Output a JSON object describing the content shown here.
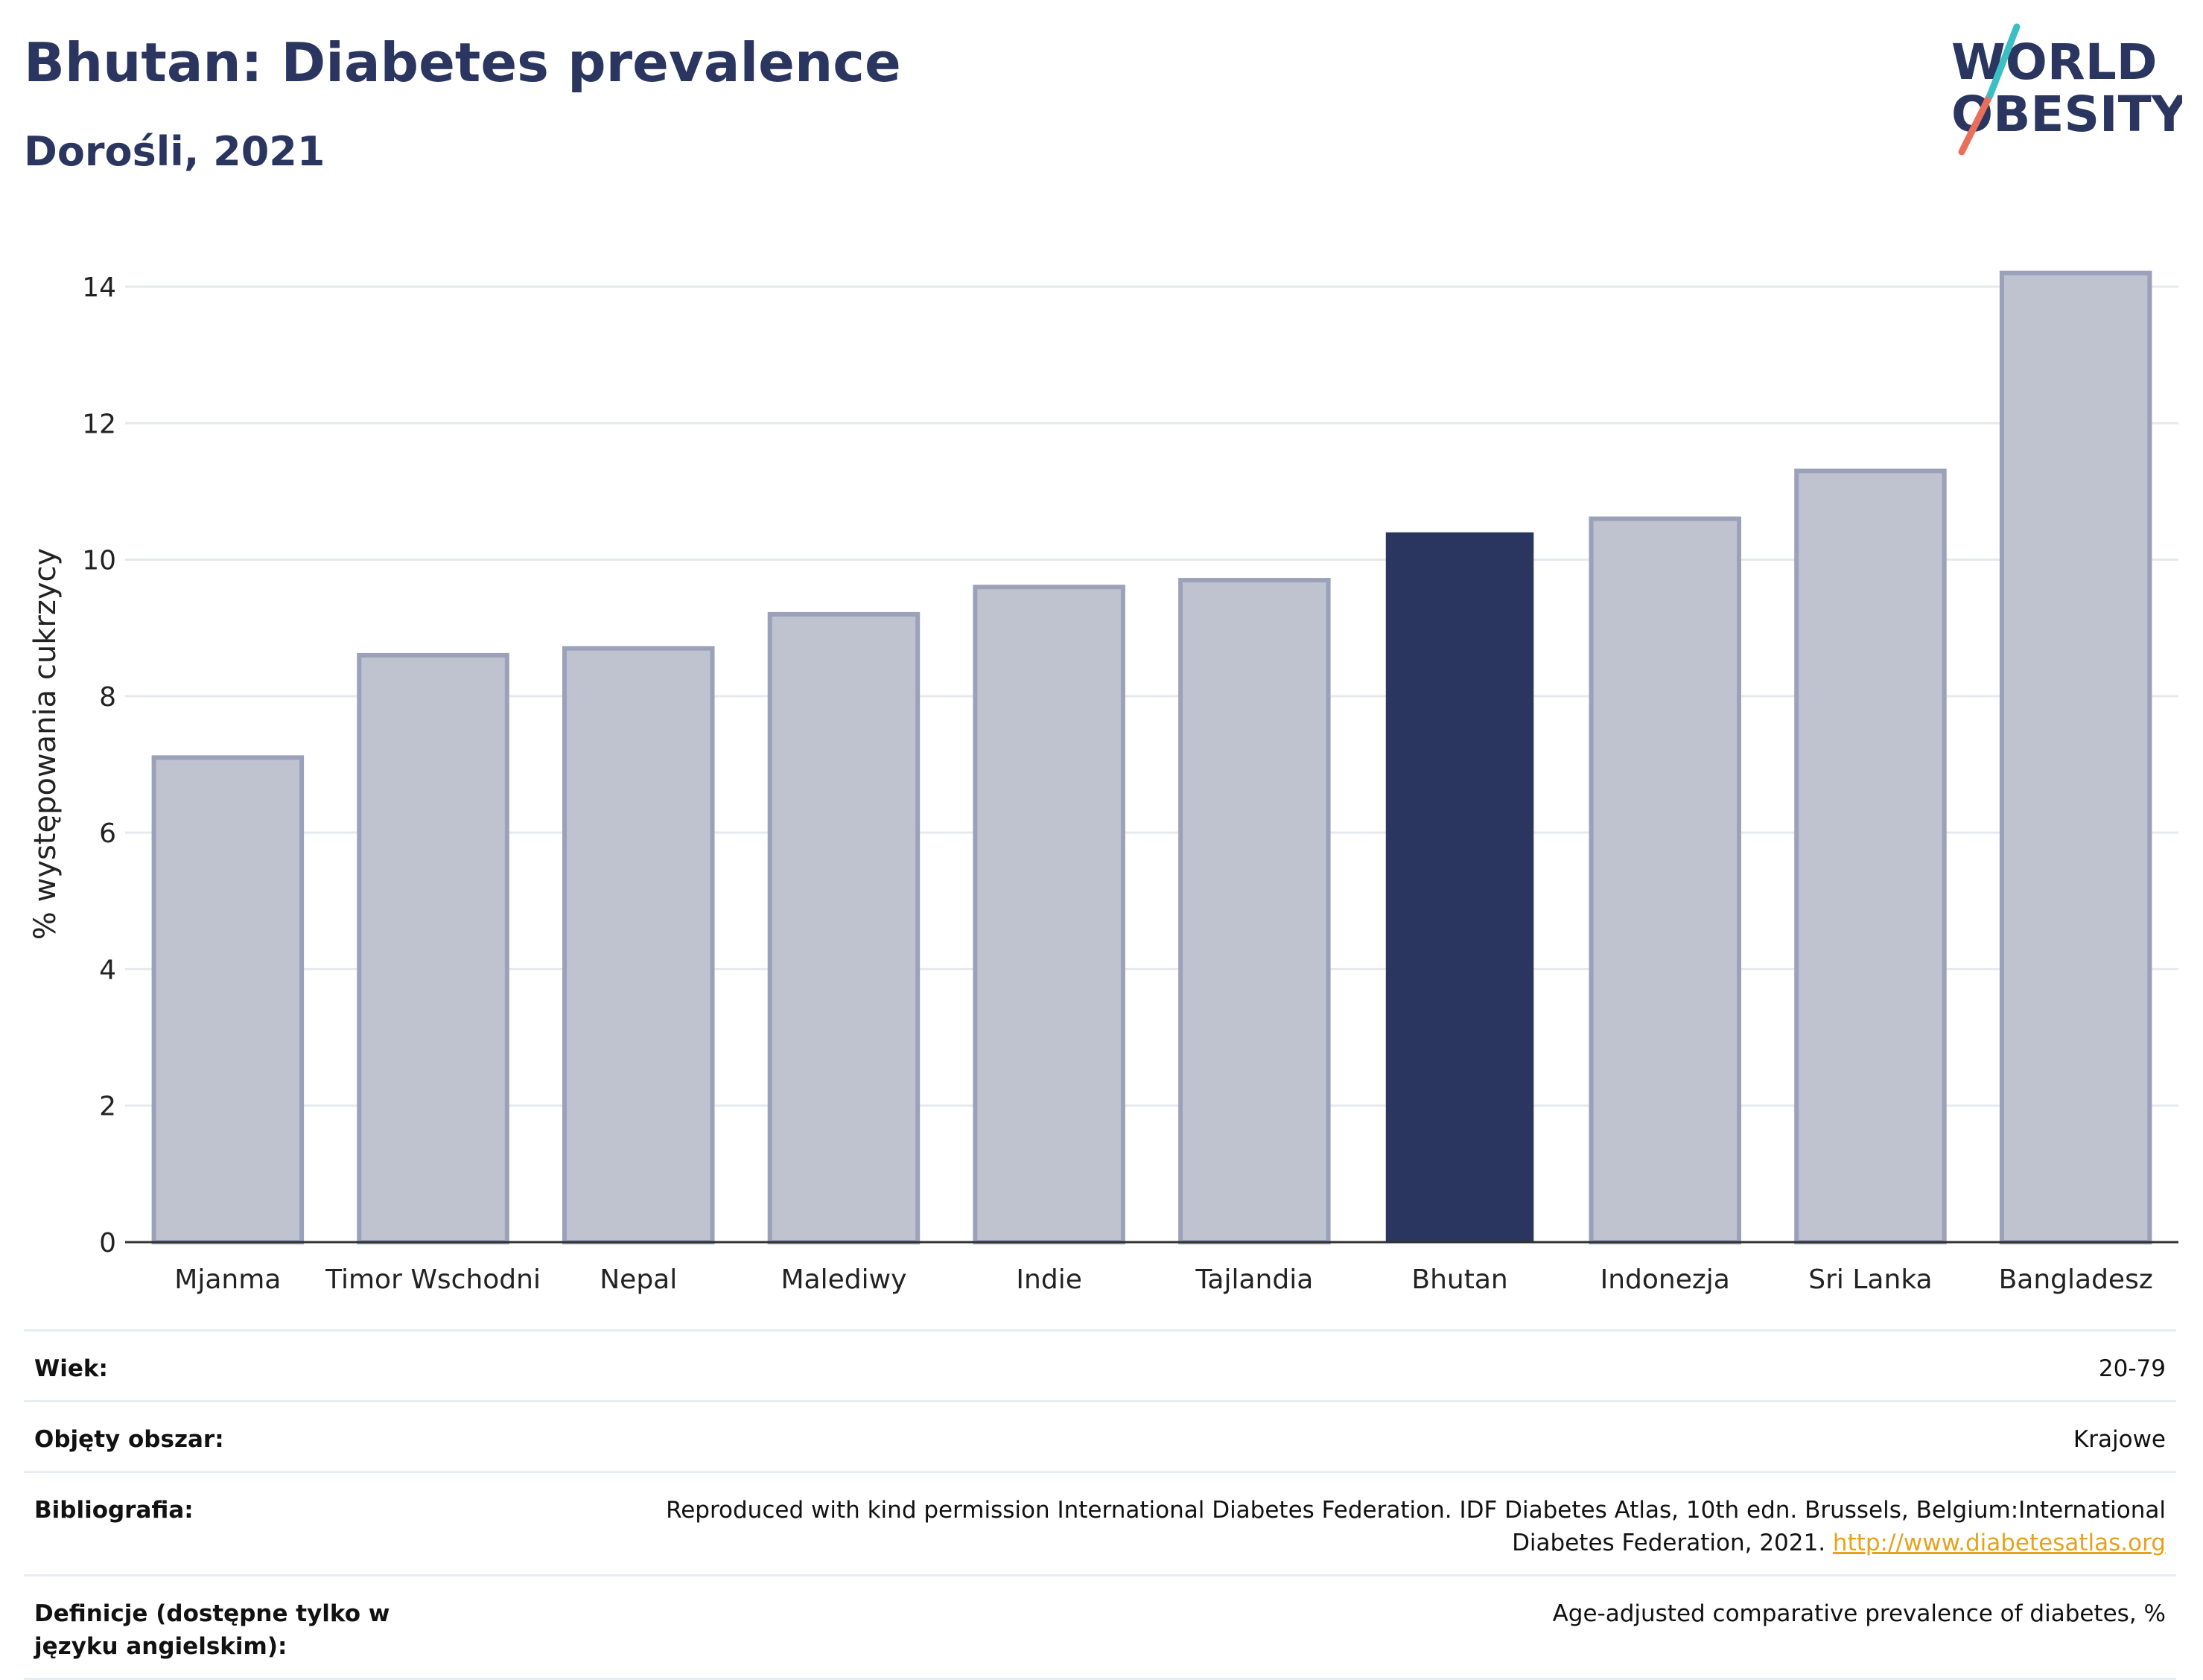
{
  "header": {
    "title": "Bhutan: Diabetes prevalence",
    "subtitle": "Dorośli, 2021"
  },
  "logo": {
    "line1": "WORLD",
    "line2": "OBESITY",
    "slash_colors": [
      "#e8705a",
      "#3bbfc4"
    ]
  },
  "chart_data": {
    "type": "bar",
    "categories": [
      "Mjanma",
      "Timor Wschodni",
      "Nepal",
      "Malediwy",
      "Indie",
      "Tajlandia",
      "Bhutan",
      "Indonezja",
      "Sri Lanka",
      "Bangladesz"
    ],
    "values": [
      7.1,
      8.6,
      8.7,
      9.2,
      9.6,
      9.7,
      10.4,
      10.6,
      11.3,
      14.2
    ],
    "highlight": "Bhutan",
    "xlabel": "",
    "ylabel": "% występowania cukrzycy",
    "ylim": [
      0,
      14.6
    ],
    "yticks": [
      0,
      2,
      4,
      6,
      8,
      10,
      12,
      14
    ],
    "grid": true,
    "colors": {
      "bar": "#bfc3d0",
      "bar_border": "#9aa1b8",
      "highlight": "#2a3560",
      "grid": "#e6e9ee",
      "axis": "#333333"
    }
  },
  "meta": [
    {
      "label": "Wiek:",
      "value": "20-79"
    },
    {
      "label": "Objęty obszar:",
      "value": "Krajowe"
    },
    {
      "label": "Bibliografia:",
      "value_line1": "Reproduced with kind permission International Diabetes Federation.  IDF Diabetes Atlas, 10th edn. Brussels, Belgium:International",
      "value_line2": "Diabetes Federation, 2021.",
      "link": "http://www.diabetesatlas.org"
    },
    {
      "label": "Definicje (dostępne tylko w języku angielskim):",
      "value": "Age-adjusted comparative prevalence of diabetes, %"
    }
  ]
}
